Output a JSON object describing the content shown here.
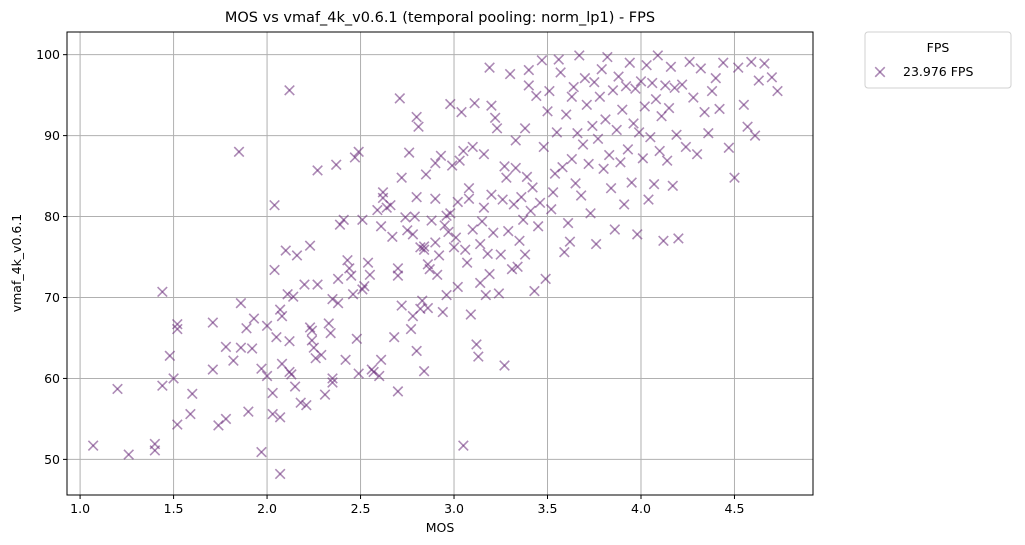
{
  "chart_data": {
    "type": "scatter",
    "title": "MOS vs vmaf_4k_v0.6.1 (temporal pooling: norm_lp1) - FPS",
    "xlabel": "MOS",
    "ylabel": "vmaf_4k_v0.6.1",
    "xlim": [
      0.93,
      4.92
    ],
    "ylim": [
      45.6,
      102.8
    ],
    "xticks": [
      1.0,
      1.5,
      2.0,
      2.5,
      3.0,
      3.5,
      4.0,
      4.5
    ],
    "xtick_labels": [
      "1.0",
      "1.5",
      "2.0",
      "2.5",
      "3.0",
      "3.5",
      "4.0",
      "4.5"
    ],
    "yticks": [
      50,
      60,
      70,
      80,
      90,
      100
    ],
    "ytick_labels": [
      "50",
      "60",
      "70",
      "80",
      "90",
      "100"
    ],
    "grid": true,
    "legend": {
      "title": "FPS",
      "position": "outside-top-right"
    },
    "marker": "x",
    "color": "#6a2c7a",
    "alpha": 0.55,
    "series": [
      {
        "name": "23.976 FPS",
        "points": [
          [
            1.07,
            51.7
          ],
          [
            1.2,
            58.7
          ],
          [
            1.26,
            50.6
          ],
          [
            1.4,
            51.9
          ],
          [
            1.4,
            51.1
          ],
          [
            1.44,
            70.7
          ],
          [
            1.44,
            59.1
          ],
          [
            1.48,
            62.8
          ],
          [
            1.5,
            60.0
          ],
          [
            1.52,
            66.7
          ],
          [
            1.52,
            66.1
          ],
          [
            1.52,
            54.3
          ],
          [
            1.59,
            55.6
          ],
          [
            1.6,
            58.1
          ],
          [
            1.71,
            61.1
          ],
          [
            1.71,
            66.9
          ],
          [
            1.74,
            54.2
          ],
          [
            1.78,
            63.9
          ],
          [
            1.78,
            55.0
          ],
          [
            1.82,
            62.2
          ],
          [
            1.85,
            88.0
          ],
          [
            1.86,
            63.8
          ],
          [
            1.86,
            69.3
          ],
          [
            1.9,
            55.9
          ],
          [
            1.89,
            66.2
          ],
          [
            1.92,
            63.7
          ],
          [
            1.93,
            67.4
          ],
          [
            1.97,
            61.2
          ],
          [
            1.97,
            50.9
          ],
          [
            2.0,
            66.5
          ],
          [
            2.0,
            60.3
          ],
          [
            2.03,
            58.2
          ],
          [
            2.03,
            55.6
          ],
          [
            2.04,
            81.4
          ],
          [
            2.04,
            73.4
          ],
          [
            2.05,
            65.1
          ],
          [
            2.07,
            68.5
          ],
          [
            2.07,
            55.2
          ],
          [
            2.07,
            48.2
          ],
          [
            2.08,
            61.8
          ],
          [
            2.08,
            67.7
          ],
          [
            2.1,
            75.8
          ],
          [
            2.11,
            70.4
          ],
          [
            2.12,
            95.6
          ],
          [
            2.12,
            64.6
          ],
          [
            2.12,
            60.8
          ],
          [
            2.13,
            60.5
          ],
          [
            2.14,
            70.1
          ],
          [
            2.15,
            59.0
          ],
          [
            2.16,
            75.2
          ],
          [
            2.18,
            57.0
          ],
          [
            2.2,
            71.6
          ],
          [
            2.21,
            56.7
          ],
          [
            2.23,
            76.4
          ],
          [
            2.23,
            66.3
          ],
          [
            2.24,
            65.9
          ],
          [
            2.24,
            64.7
          ],
          [
            2.25,
            63.8
          ],
          [
            2.26,
            62.5
          ],
          [
            2.27,
            71.6
          ],
          [
            2.27,
            85.7
          ],
          [
            2.29,
            62.9
          ],
          [
            2.31,
            58.0
          ],
          [
            2.33,
            66.8
          ],
          [
            2.34,
            65.6
          ],
          [
            2.35,
            60.0
          ],
          [
            2.35,
            59.5
          ],
          [
            2.35,
            69.8
          ],
          [
            2.37,
            86.4
          ],
          [
            2.38,
            72.3
          ],
          [
            2.38,
            69.3
          ],
          [
            2.39,
            79.0
          ],
          [
            2.41,
            79.6
          ],
          [
            2.42,
            62.3
          ],
          [
            2.43,
            74.6
          ],
          [
            2.44,
            73.6
          ],
          [
            2.45,
            72.7
          ],
          [
            2.46,
            70.4
          ],
          [
            2.47,
            87.3
          ],
          [
            2.48,
            64.9
          ],
          [
            2.49,
            60.6
          ],
          [
            2.49,
            88.0
          ],
          [
            2.51,
            71.0
          ],
          [
            2.51,
            79.6
          ],
          [
            2.52,
            71.4
          ],
          [
            2.54,
            74.3
          ],
          [
            2.55,
            72.8
          ],
          [
            2.56,
            61.1
          ],
          [
            2.57,
            60.8
          ],
          [
            2.59,
            80.8
          ],
          [
            2.6,
            60.3
          ],
          [
            2.61,
            62.3
          ],
          [
            2.61,
            78.8
          ],
          [
            2.62,
            82.3
          ],
          [
            2.62,
            83.0
          ],
          [
            2.64,
            81.1
          ],
          [
            2.66,
            81.4
          ],
          [
            2.67,
            77.5
          ],
          [
            2.68,
            65.1
          ],
          [
            2.7,
            72.7
          ],
          [
            2.7,
            58.4
          ],
          [
            2.7,
            73.6
          ],
          [
            2.71,
            94.6
          ],
          [
            2.72,
            84.8
          ],
          [
            2.72,
            69.0
          ],
          [
            2.74,
            79.9
          ],
          [
            2.75,
            78.3
          ],
          [
            2.76,
            87.9
          ],
          [
            2.77,
            66.1
          ],
          [
            2.78,
            77.8
          ],
          [
            2.78,
            67.7
          ],
          [
            2.79,
            80.0
          ],
          [
            2.8,
            82.4
          ],
          [
            2.8,
            63.4
          ],
          [
            2.8,
            92.3
          ],
          [
            2.81,
            91.1
          ],
          [
            2.82,
            68.6
          ],
          [
            2.82,
            76.2
          ],
          [
            2.83,
            69.6
          ],
          [
            2.84,
            76.3
          ],
          [
            2.84,
            75.9
          ],
          [
            2.84,
            60.9
          ],
          [
            2.85,
            85.2
          ],
          [
            2.86,
            68.7
          ],
          [
            2.86,
            74.1
          ],
          [
            2.87,
            73.5
          ],
          [
            2.88,
            79.5
          ],
          [
            2.9,
            76.8
          ],
          [
            2.9,
            82.2
          ],
          [
            2.9,
            86.6
          ],
          [
            2.91,
            72.8
          ],
          [
            2.92,
            75.2
          ],
          [
            2.93,
            87.5
          ],
          [
            2.94,
            68.2
          ],
          [
            2.95,
            78.9
          ],
          [
            2.96,
            80.1
          ],
          [
            2.96,
            70.3
          ],
          [
            2.97,
            78.1
          ],
          [
            2.98,
            80.4
          ],
          [
            2.98,
            93.9
          ],
          [
            2.99,
            86.3
          ],
          [
            3.0,
            76.2
          ],
          [
            3.01,
            77.4
          ],
          [
            3.02,
            71.3
          ],
          [
            3.02,
            81.8
          ],
          [
            3.03,
            86.9
          ],
          [
            3.04,
            92.9
          ],
          [
            3.05,
            51.7
          ],
          [
            3.05,
            88.1
          ],
          [
            3.06,
            75.9
          ],
          [
            3.07,
            74.3
          ],
          [
            3.08,
            82.2
          ],
          [
            3.08,
            83.5
          ],
          [
            3.09,
            67.9
          ],
          [
            3.1,
            78.4
          ],
          [
            3.1,
            88.6
          ],
          [
            3.11,
            94.0
          ],
          [
            3.12,
            64.2
          ],
          [
            3.13,
            62.7
          ],
          [
            3.14,
            71.8
          ],
          [
            3.14,
            76.6
          ],
          [
            3.15,
            79.4
          ],
          [
            3.16,
            81.1
          ],
          [
            3.16,
            87.7
          ],
          [
            3.17,
            70.3
          ],
          [
            3.18,
            75.4
          ],
          [
            3.19,
            72.9
          ],
          [
            3.19,
            98.4
          ],
          [
            3.2,
            82.7
          ],
          [
            3.2,
            93.7
          ],
          [
            3.21,
            78.0
          ],
          [
            3.22,
            92.2
          ],
          [
            3.23,
            90.9
          ],
          [
            3.24,
            70.5
          ],
          [
            3.25,
            75.3
          ],
          [
            3.26,
            82.1
          ],
          [
            3.27,
            61.6
          ],
          [
            3.27,
            86.2
          ],
          [
            3.28,
            84.8
          ],
          [
            3.29,
            78.2
          ],
          [
            3.3,
            97.6
          ],
          [
            3.31,
            73.5
          ],
          [
            3.32,
            81.5
          ],
          [
            3.33,
            86.0
          ],
          [
            3.33,
            89.4
          ],
          [
            3.34,
            73.8
          ],
          [
            3.35,
            77.0
          ],
          [
            3.36,
            82.4
          ],
          [
            3.37,
            79.6
          ],
          [
            3.38,
            75.3
          ],
          [
            3.38,
            90.9
          ],
          [
            3.39,
            84.9
          ],
          [
            3.4,
            96.2
          ],
          [
            3.4,
            98.1
          ],
          [
            3.41,
            80.7
          ],
          [
            3.42,
            83.6
          ],
          [
            3.43,
            70.8
          ],
          [
            3.44,
            94.9
          ],
          [
            3.45,
            78.8
          ],
          [
            3.46,
            81.7
          ],
          [
            3.47,
            99.3
          ],
          [
            3.48,
            88.6
          ],
          [
            3.49,
            72.3
          ],
          [
            3.5,
            93.0
          ],
          [
            3.51,
            95.5
          ],
          [
            3.52,
            80.9
          ],
          [
            3.53,
            83.0
          ],
          [
            3.54,
            85.3
          ],
          [
            3.55,
            90.4
          ],
          [
            3.56,
            99.4
          ],
          [
            3.57,
            97.8
          ],
          [
            3.58,
            86.1
          ],
          [
            3.59,
            75.6
          ],
          [
            3.6,
            92.6
          ],
          [
            3.61,
            79.2
          ],
          [
            3.62,
            76.9
          ],
          [
            3.63,
            87.1
          ],
          [
            3.63,
            94.8
          ],
          [
            3.64,
            96.0
          ],
          [
            3.65,
            84.1
          ],
          [
            3.66,
            90.3
          ],
          [
            3.67,
            99.9
          ],
          [
            3.68,
            82.6
          ],
          [
            3.69,
            88.9
          ],
          [
            3.7,
            97.1
          ],
          [
            3.71,
            93.8
          ],
          [
            3.72,
            86.5
          ],
          [
            3.73,
            80.4
          ],
          [
            3.74,
            91.2
          ],
          [
            3.75,
            96.6
          ],
          [
            3.76,
            76.6
          ],
          [
            3.77,
            89.6
          ],
          [
            3.78,
            94.8
          ],
          [
            3.79,
            98.2
          ],
          [
            3.8,
            85.9
          ],
          [
            3.81,
            92.0
          ],
          [
            3.82,
            99.7
          ],
          [
            3.83,
            87.6
          ],
          [
            3.84,
            83.5
          ],
          [
            3.85,
            95.6
          ],
          [
            3.86,
            78.4
          ],
          [
            3.87,
            90.7
          ],
          [
            3.88,
            97.3
          ],
          [
            3.89,
            86.7
          ],
          [
            3.9,
            93.2
          ],
          [
            3.91,
            81.5
          ],
          [
            3.92,
            96.1
          ],
          [
            3.93,
            88.3
          ],
          [
            3.94,
            99.0
          ],
          [
            3.95,
            84.2
          ],
          [
            3.96,
            91.5
          ],
          [
            3.97,
            95.8
          ],
          [
            3.98,
            77.8
          ],
          [
            3.99,
            90.4
          ],
          [
            4.0,
            96.7
          ],
          [
            4.01,
            87.2
          ],
          [
            4.02,
            93.6
          ],
          [
            4.03,
            98.7
          ],
          [
            4.04,
            82.1
          ],
          [
            4.05,
            89.8
          ],
          [
            4.06,
            96.5
          ],
          [
            4.07,
            84.0
          ],
          [
            4.08,
            94.5
          ],
          [
            4.09,
            99.9
          ],
          [
            4.1,
            88.1
          ],
          [
            4.11,
            92.4
          ],
          [
            4.12,
            77.0
          ],
          [
            4.13,
            96.2
          ],
          [
            4.14,
            86.9
          ],
          [
            4.15,
            93.4
          ],
          [
            4.16,
            98.5
          ],
          [
            4.17,
            83.8
          ],
          [
            4.18,
            95.9
          ],
          [
            4.19,
            90.1
          ],
          [
            4.2,
            77.3
          ],
          [
            4.22,
            96.3
          ],
          [
            4.24,
            88.6
          ],
          [
            4.26,
            99.1
          ],
          [
            4.28,
            94.7
          ],
          [
            4.3,
            87.7
          ],
          [
            4.32,
            98.3
          ],
          [
            4.34,
            92.9
          ],
          [
            4.36,
            90.3
          ],
          [
            4.38,
            95.5
          ],
          [
            4.4,
            97.1
          ],
          [
            4.42,
            93.3
          ],
          [
            4.44,
            99.0
          ],
          [
            4.47,
            88.5
          ],
          [
            4.5,
            84.8
          ],
          [
            4.52,
            98.4
          ],
          [
            4.55,
            93.8
          ],
          [
            4.57,
            91.1
          ],
          [
            4.59,
            99.1
          ],
          [
            4.61,
            90.0
          ],
          [
            4.63,
            96.8
          ],
          [
            4.66,
            98.9
          ],
          [
            4.7,
            97.2
          ],
          [
            4.73,
            95.5
          ]
        ]
      }
    ]
  }
}
